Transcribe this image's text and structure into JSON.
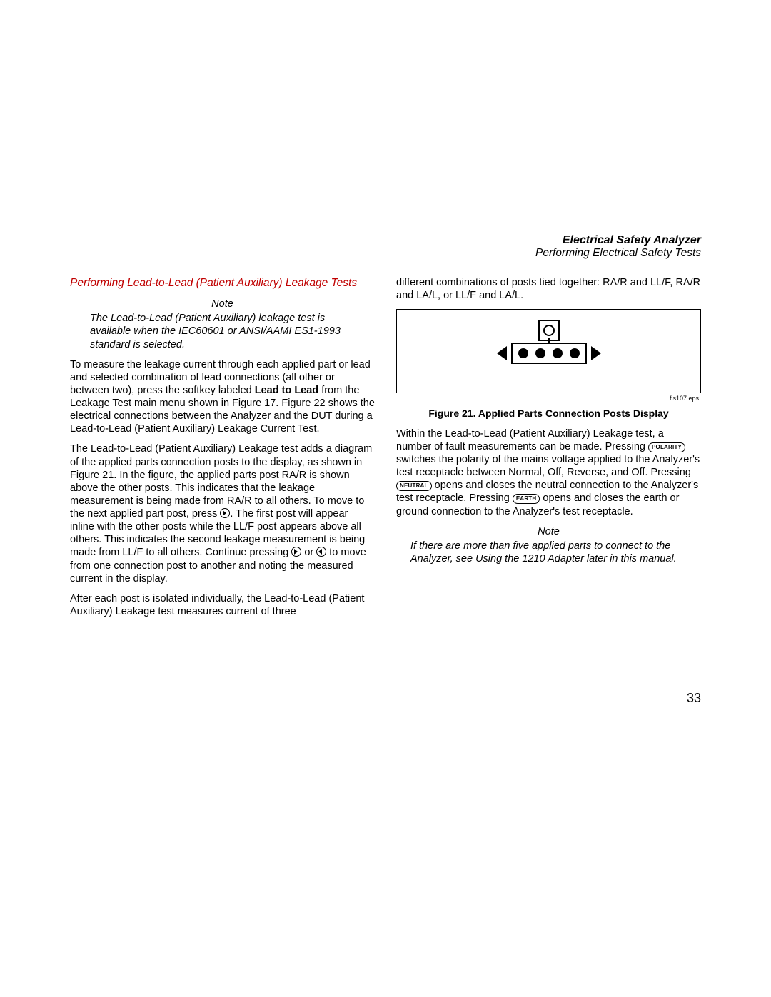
{
  "header": {
    "title_bold": "Electrical Safety Analyzer",
    "subtitle": "Performing Electrical Safety Tests"
  },
  "left": {
    "section_title": "Performing Lead-to-Lead (Patient Auxiliary) Leakage Tests",
    "note_label": "Note",
    "note_body": "The Lead-to-Lead (Patient Auxiliary) leakage test is available when the IEC60601 or ANSI/AAMI ES1-1993 standard is selected.",
    "p1a": "To measure the leakage current through each applied part or lead and selected combination of lead connections (all other or between two), press the softkey labeled ",
    "p1b": "Lead to Lead",
    "p1c": " from the Leakage Test main menu shown in Figure 17. Figure 22 shows the electrical connections between the Analyzer and the DUT during a Lead-to-Lead (Patient Auxiliary) Leakage Current Test.",
    "p2a": "The Lead-to-Lead (Patient Auxiliary) Leakage test adds a diagram of the applied parts connection posts to the display, as shown in Figure 21. In the figure, the applied parts post RA/R is shown above the other posts. This indicates that the leakage measurement is being made from RA/R to all others. To move to the next applied part post, press ",
    "p2b": ". The first post will appear inline with the other posts while the LL/F post appears above all others. This indicates the second leakage measurement is being made from LL/F to all others. Continue pressing ",
    "p2c": " or ",
    "p2d": " to move from one connection post to another and noting the measured current in the display.",
    "p3": "After each post is isolated individually, the Lead-to-Lead (Patient Auxiliary) Leakage test measures current of three"
  },
  "right": {
    "p0": "different combinations of posts tied together: RA/R and LL/F, RA/R and LA/L, or LL/F and LA/L.",
    "fig_src": "fis107.eps",
    "fig_caption": "Figure 21. Applied Parts Connection Posts Display",
    "p1a": "Within the Lead-to-Lead (Patient Auxiliary) Leakage test, a number of fault measurements can be made. Pressing ",
    "k_polarity": "POLARITY",
    "p1b": " switches the polarity of the mains voltage applied to the Analyzer's test receptacle between Normal, Off, Reverse, and Off. Pressing ",
    "k_neutral": "NEUTRAL",
    "p1c": " opens and closes the neutral connection to the Analyzer's test receptacle. Pressing ",
    "k_earth": "EARTH",
    "p1d": " opens and closes the earth or ground connection to the Analyzer's test receptacle.",
    "note_label": "Note",
    "note_body": "If there are more than five applied parts to connect to the Analyzer, see Using the 1210 Adapter later in this manual."
  },
  "page_number": "33",
  "colors": {
    "accent": "#c00000",
    "text": "#000000",
    "bg": "#ffffff"
  }
}
